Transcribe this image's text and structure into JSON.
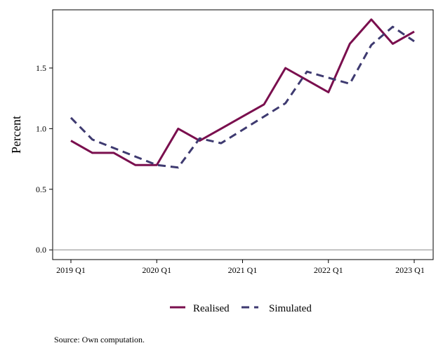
{
  "chart_data": {
    "type": "line",
    "ylabel": "Percent",
    "xlabel": "",
    "x": [
      "2019 Q1",
      "2019 Q2",
      "2019 Q3",
      "2019 Q4",
      "2020 Q1",
      "2020 Q2",
      "2020 Q3",
      "2020 Q4",
      "2021 Q1",
      "2021 Q2",
      "2021 Q3",
      "2021 Q4",
      "2022 Q1",
      "2022 Q2",
      "2022 Q3",
      "2022 Q4",
      "2023 Q1"
    ],
    "x_tick_labels": [
      "2019 Q1",
      "2020 Q1",
      "2021 Q1",
      "2022 Q1",
      "2023 Q1"
    ],
    "y_ticks": [
      "0.0",
      "0.5",
      "1.0",
      "1.5"
    ],
    "ylim": [
      -0.08,
      1.98
    ],
    "reference_line": 0,
    "grid": false,
    "legend_position": "bottom",
    "series": [
      {
        "name": "Realised",
        "color": "#7a0f4e",
        "style": "solid",
        "values": [
          0.9,
          0.8,
          0.8,
          0.7,
          0.7,
          1.0,
          0.9,
          1.0,
          1.1,
          1.2,
          1.5,
          1.4,
          1.3,
          1.7,
          1.9,
          1.7,
          1.8
        ]
      },
      {
        "name": "Simulated",
        "color": "#3e3a70",
        "style": "dashed",
        "values": [
          1.09,
          0.91,
          0.84,
          0.77,
          0.7,
          0.68,
          0.92,
          0.88,
          0.99,
          1.1,
          1.21,
          1.47,
          1.42,
          1.37,
          1.69,
          1.84,
          1.72
        ]
      }
    ]
  },
  "source_note": "Source: Own computation."
}
